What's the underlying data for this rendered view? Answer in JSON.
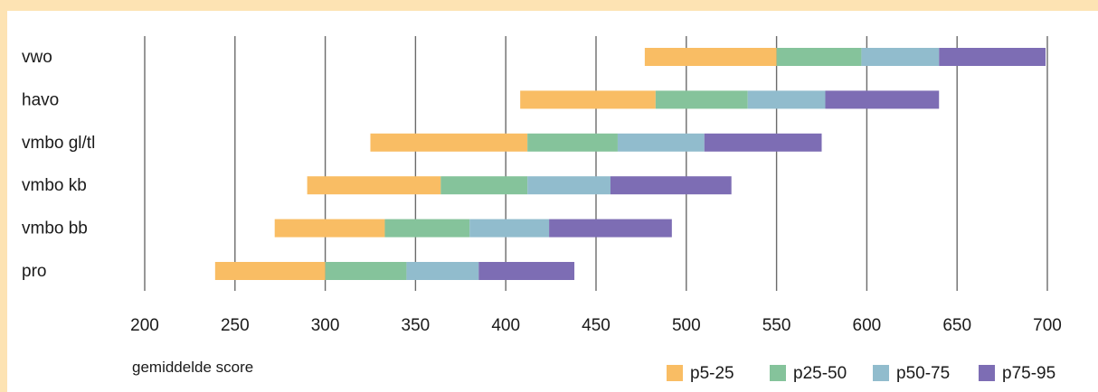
{
  "chart_data": {
    "type": "bar",
    "orientation": "horizontal",
    "stacked": true,
    "xlabel": "gemiddelde score",
    "xlim": [
      200,
      700
    ],
    "xticks": [
      200,
      250,
      300,
      350,
      400,
      450,
      500,
      550,
      600,
      650,
      700
    ],
    "grid": true,
    "legend_position": "bottom-right",
    "categories": [
      "vwo",
      "havo",
      "vmbo gl/tl",
      "vmbo kb",
      "vmbo bb",
      "pro"
    ],
    "ranges": [
      {
        "category": "vwo",
        "bounds": [
          477,
          550,
          597,
          640,
          699
        ]
      },
      {
        "category": "havo",
        "bounds": [
          408,
          483,
          534,
          577,
          640
        ]
      },
      {
        "category": "vmbo gl/tl",
        "bounds": [
          325,
          412,
          462,
          510,
          575
        ]
      },
      {
        "category": "vmbo kb",
        "bounds": [
          290,
          364,
          412,
          458,
          525
        ]
      },
      {
        "category": "vmbo bb",
        "bounds": [
          272,
          333,
          380,
          424,
          492
        ]
      },
      {
        "category": "pro",
        "bounds": [
          239,
          300,
          345,
          385,
          438
        ]
      }
    ],
    "series": [
      {
        "name": "p5-25",
        "color": "#f9bd64"
      },
      {
        "name": "p25-50",
        "color": "#85c39b"
      },
      {
        "name": "p50-75",
        "color": "#91bccd"
      },
      {
        "name": "p75-95",
        "color": "#7d6db4"
      }
    ]
  }
}
